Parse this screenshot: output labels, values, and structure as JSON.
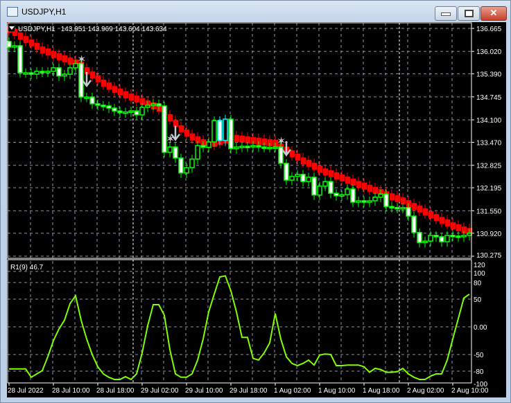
{
  "window": {
    "title": "USDJPY,H1",
    "buttons": [
      "minimize",
      "maximize",
      "close"
    ]
  },
  "colors": {
    "background": "#000000",
    "bear_band": "#ff0000",
    "bull_candle": "#00ff00",
    "bull_body": "#ffffff",
    "highlight_candle": "#00ffff",
    "oscillator": "#7fff00",
    "grid": "#8a8fa0",
    "signal": "#c8c8d0"
  },
  "chart_data": [
    {
      "type": "candlestick",
      "symbol_label": "USDJPY,H1",
      "ohlc_label": "143.951 143.969 143.604 143.634",
      "yticks": [
        "136.665",
        "136.020",
        "135.390",
        "134.745",
        "134.100",
        "133.470",
        "132.825",
        "132.195",
        "131.550",
        "130.920",
        "130.275"
      ],
      "ylim": [
        130.275,
        136.665
      ],
      "closes": [
        136.14,
        136.18,
        135.42,
        135.42,
        135.38,
        135.46,
        135.44,
        135.46,
        135.56,
        135.33,
        135.38,
        135.56,
        135.68,
        134.74,
        134.74,
        134.55,
        134.51,
        134.49,
        134.43,
        134.35,
        134.3,
        134.32,
        134.35,
        134.24,
        134.45,
        134.51,
        134.55,
        134.49,
        133.19,
        133.34,
        133.03,
        132.61,
        132.76,
        133.0,
        133.38,
        133.33,
        133.48,
        134.08,
        133.52,
        134.12,
        133.29,
        133.34,
        133.36,
        133.34,
        133.38,
        133.34,
        133.33,
        133.33,
        133.34,
        132.88,
        132.41,
        132.51,
        132.57,
        132.37,
        132.49,
        131.99,
        132.24,
        132.37,
        132.04,
        131.97,
        132.0,
        132.16,
        131.79,
        131.83,
        131.79,
        131.83,
        131.93,
        132.02,
        131.67,
        131.64,
        131.62,
        131.64,
        131.4,
        130.94,
        130.66,
        130.7,
        130.86,
        130.82,
        130.68,
        130.86,
        130.84,
        130.82,
        130.86,
        130.92
      ],
      "first_open": 136.3,
      "highlight_indices": [
        38,
        39
      ],
      "band": [
        136.68,
        136.59,
        136.49,
        136.39,
        136.3,
        136.2,
        136.1,
        136.04,
        135.97,
        135.91,
        135.85,
        135.79,
        135.73,
        135.68,
        135.52,
        135.4,
        135.29,
        135.17,
        135.09,
        134.99,
        134.92,
        134.84,
        134.78,
        134.72,
        134.65,
        134.59,
        134.53,
        134.47,
        134.35,
        134.2,
        134.04,
        133.89,
        133.77,
        133.66,
        133.58,
        133.5,
        133.44,
        133.48,
        133.54,
        133.58,
        133.62,
        133.62,
        133.6,
        133.58,
        133.56,
        133.54,
        133.52,
        133.5,
        133.48,
        133.38,
        133.29,
        133.19,
        133.09,
        132.99,
        132.92,
        132.84,
        132.76,
        132.68,
        132.63,
        132.57,
        132.51,
        132.45,
        132.39,
        132.33,
        132.28,
        132.22,
        132.16,
        132.1,
        132.04,
        131.98,
        131.93,
        131.87,
        131.79,
        131.71,
        131.64,
        131.56,
        131.48,
        131.4,
        131.32,
        131.25,
        131.17,
        131.11,
        131.05,
        131.01
      ],
      "signals": [
        {
          "index": 13,
          "star": 135.81,
          "arrow": 135.13
        },
        {
          "index": 29,
          "star": 133.58,
          "arrow": 133.62
        },
        {
          "index": 49,
          "star": 133.52,
          "arrow": 133.19
        }
      ],
      "xticks": [
        {
          "index": 0,
          "label": "28 Jul 2022"
        },
        {
          "index": 8,
          "label": "28 Jul 10:00"
        },
        {
          "index": 16,
          "label": "28 Jul 18:00"
        },
        {
          "index": 24,
          "label": "29 Jul 02:00"
        },
        {
          "index": 32,
          "label": "29 Jul 10:00"
        },
        {
          "index": 40,
          "label": "29 Jul 18:00"
        },
        {
          "index": 48,
          "label": "1 Aug 02:00"
        },
        {
          "index": 56,
          "label": "1 Aug 10:00"
        },
        {
          "index": 64,
          "label": "1 Aug 18:00"
        },
        {
          "index": 72,
          "label": "2 Aug 02:00"
        },
        {
          "index": 80,
          "label": "2 Aug 10:00"
        }
      ],
      "day_separators": [
        22,
        70
      ],
      "grid": true
    },
    {
      "type": "line",
      "label": "R1(9) 46.7",
      "yticks": [
        "120",
        "100",
        "80",
        "50",
        "0.00",
        "-50",
        "-80",
        "-100"
      ],
      "ytick_values": [
        120,
        100,
        80,
        50,
        0,
        -50,
        -80,
        -100
      ],
      "ylim": [
        -110,
        125
      ],
      "values": [
        -76,
        -76,
        -76,
        -76,
        -91,
        -85,
        -79,
        -54,
        -25,
        -4,
        12,
        42,
        56,
        12,
        -22,
        -50,
        -72,
        -85,
        -91,
        -95,
        -95,
        -90,
        -95,
        -85,
        -47,
        2,
        40,
        40,
        21,
        -41,
        -85,
        -91,
        -91,
        -85,
        -60,
        -22,
        27,
        59,
        90,
        92,
        65,
        27,
        -19,
        -19,
        -57,
        -60,
        -47,
        -29,
        24,
        -22,
        -54,
        -66,
        -70,
        -66,
        -60,
        -69,
        -51,
        -49,
        -50,
        -70,
        -70,
        -69,
        -69,
        -69,
        -72,
        -82,
        -75,
        -77,
        -82,
        -82,
        -81,
        -75,
        -85,
        -91,
        -95,
        -95,
        -89,
        -85,
        -85,
        -60,
        -22,
        15,
        52,
        59
      ]
    }
  ]
}
